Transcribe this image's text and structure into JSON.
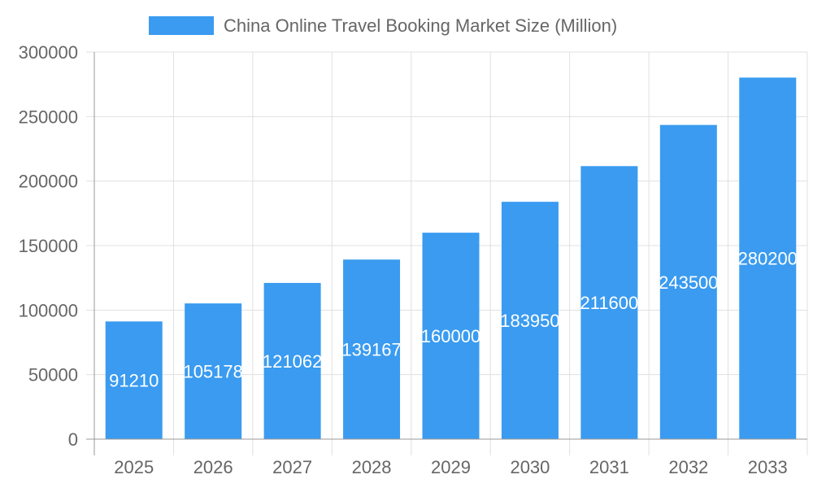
{
  "chart_data": {
    "type": "bar",
    "title": "",
    "xlabel": "",
    "ylabel": "",
    "categories": [
      "2025",
      "2026",
      "2027",
      "2028",
      "2029",
      "2030",
      "2031",
      "2032",
      "2033"
    ],
    "series": [
      {
        "name": "China Online Travel Booking Market Size (Million)",
        "values": [
          91210,
          105178,
          121062,
          139167,
          160000,
          183950,
          211600,
          243500,
          280200
        ]
      }
    ],
    "ylim": [
      0,
      300000
    ],
    "yticks": [
      0,
      50000,
      100000,
      150000,
      200000,
      250000,
      300000
    ],
    "grid": true,
    "legend": "top",
    "data_labels": true,
    "colors": {
      "bar": "#3a9bf0",
      "grid": "#e0e0e0",
      "text": "#666666",
      "label": "#ffffff"
    }
  }
}
